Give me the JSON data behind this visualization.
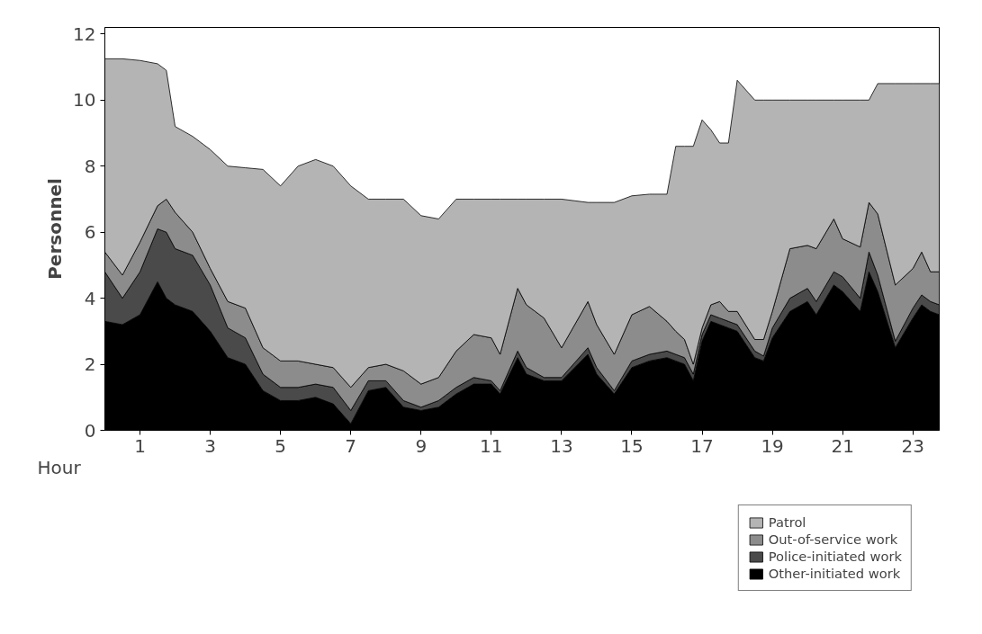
{
  "chart_data": {
    "type": "area",
    "stacked": true,
    "xlabel": "Hour",
    "ylabel": "Personnel",
    "x": [
      0,
      0.5,
      1,
      1.5,
      1.75,
      2,
      2.5,
      3,
      3.5,
      4,
      4.5,
      5,
      5.5,
      6,
      6.5,
      7,
      7.5,
      8,
      8.5,
      9,
      9.5,
      10,
      10.5,
      11,
      11.25,
      11.75,
      12,
      12.5,
      13,
      13.75,
      14,
      14.5,
      15,
      15.5,
      16,
      16.25,
      16.5,
      16.75,
      17,
      17.25,
      17.5,
      17.75,
      18,
      18.5,
      18.75,
      19,
      19.5,
      20,
      20.25,
      20.75,
      21,
      21.5,
      21.75,
      22,
      22.5,
      23,
      23.25,
      23.5,
      23.75
    ],
    "series": [
      {
        "name": "Other-initiated work",
        "color": "#000000",
        "values": [
          3.3,
          3.2,
          3.5,
          4.5,
          4.0,
          3.8,
          3.6,
          3.0,
          2.2,
          2.0,
          1.2,
          0.9,
          0.9,
          1.0,
          0.8,
          0.2,
          1.2,
          1.3,
          0.7,
          0.6,
          0.7,
          1.1,
          1.4,
          1.4,
          1.1,
          2.2,
          1.7,
          1.5,
          1.5,
          2.3,
          1.7,
          1.1,
          1.9,
          2.1,
          2.2,
          2.1,
          2.0,
          1.5,
          2.7,
          3.3,
          3.2,
          3.1,
          3.0,
          2.2,
          2.1,
          2.8,
          3.6,
          3.9,
          3.5,
          4.4,
          4.2,
          3.6,
          4.8,
          4.2,
          2.5,
          3.4,
          3.8,
          3.6,
          3.5
        ]
      },
      {
        "name": "Police-initiated work",
        "color": "#4a4a4a",
        "values": [
          1.5,
          0.8,
          1.3,
          1.6,
          2.0,
          1.7,
          1.7,
          1.4,
          0.9,
          0.8,
          0.5,
          0.4,
          0.4,
          0.4,
          0.5,
          0.4,
          0.3,
          0.2,
          0.2,
          0.1,
          0.2,
          0.2,
          0.2,
          0.1,
          0.1,
          0.2,
          0.2,
          0.1,
          0.1,
          0.2,
          0.2,
          0.1,
          0.2,
          0.2,
          0.2,
          0.2,
          0.2,
          0.2,
          0.2,
          0.2,
          0.2,
          0.2,
          0.2,
          0.2,
          0.15,
          0.3,
          0.4,
          0.4,
          0.4,
          0.4,
          0.45,
          0.4,
          0.6,
          0.5,
          0.2,
          0.3,
          0.3,
          0.3,
          0.3
        ]
      },
      {
        "name": "Out-of-service work",
        "color": "#8c8c8c",
        "values": [
          0.6,
          0.7,
          0.9,
          0.7,
          1.0,
          1.1,
          0.7,
          0.5,
          0.8,
          0.9,
          0.8,
          0.8,
          0.8,
          0.6,
          0.6,
          0.7,
          0.4,
          0.5,
          0.9,
          0.7,
          0.7,
          1.1,
          1.3,
          1.3,
          1.1,
          1.9,
          1.9,
          1.8,
          0.9,
          1.4,
          1.3,
          1.1,
          1.4,
          1.45,
          0.9,
          0.7,
          0.55,
          0.3,
          0.2,
          0.3,
          0.5,
          0.3,
          0.4,
          0.35,
          0.5,
          0.5,
          1.5,
          1.3,
          1.6,
          1.6,
          1.15,
          1.55,
          1.5,
          1.85,
          1.7,
          1.2,
          1.3,
          0.9,
          1.0
        ]
      },
      {
        "name": "Patrol",
        "color": "#b4b4b4",
        "values": [
          5.85,
          6.55,
          5.5,
          4.3,
          3.9,
          2.6,
          2.9,
          3.6,
          4.1,
          4.25,
          5.4,
          5.3,
          5.9,
          6.2,
          6.1,
          6.1,
          5.1,
          5.0,
          5.2,
          5.1,
          4.8,
          4.6,
          4.1,
          4.2,
          4.7,
          2.7,
          3.2,
          3.6,
          4.5,
          3.0,
          3.7,
          4.6,
          3.6,
          3.4,
          3.85,
          5.6,
          5.85,
          6.6,
          6.3,
          5.3,
          4.8,
          5.1,
          7.0,
          7.25,
          7.25,
          6.4,
          4.5,
          4.4,
          4.5,
          3.6,
          4.2,
          4.45,
          3.1,
          3.95,
          6.1,
          5.6,
          5.1,
          5.7,
          5.7
        ]
      }
    ],
    "xlim": [
      0,
      23.75
    ],
    "xticks": [
      1,
      3,
      5,
      7,
      9,
      11,
      13,
      15,
      17,
      19,
      21,
      23
    ],
    "ylim": [
      0,
      12.2
    ],
    "yticks": [
      0,
      2,
      4,
      6,
      8,
      10,
      12
    ],
    "grid": false,
    "legend": "bottom right"
  }
}
